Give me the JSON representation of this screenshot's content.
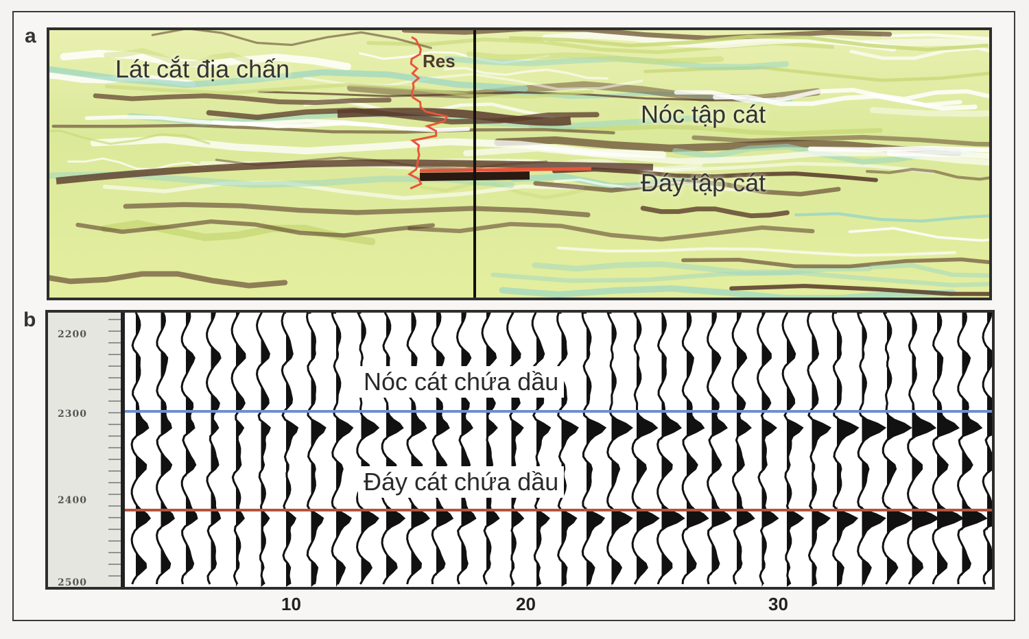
{
  "panel_a": {
    "letter": "a",
    "title": "Lát cắt địa chấn",
    "res_label": "Res",
    "top_label": "Nóc tập cát",
    "bottom_label": "Đáy tập cát"
  },
  "panel_b": {
    "letter": "b",
    "top_label": "Nóc  cát chứa dầu",
    "bottom_label": "Đáy  cát chứa dầu",
    "depth_ticks": [
      "2200",
      "2300",
      "2400",
      "2500"
    ],
    "x_ticks": [
      "10",
      "20",
      "30"
    ],
    "colors": {
      "top_horizon": "#6f8fd0",
      "bottom_horizon": "#b5533a"
    }
  },
  "colors": {
    "seismic_background": "#dfeaa0",
    "seismic_dark": "#5a3a2a",
    "seismic_light": "#ffffff",
    "seismic_teal": "#9ad6c4",
    "res_log": "#e8553a",
    "well_line": "#111111"
  }
}
